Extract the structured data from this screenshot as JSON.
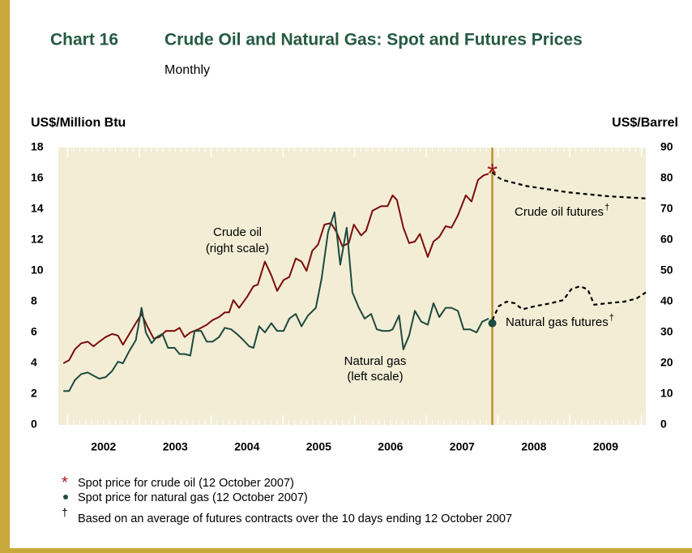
{
  "chart_data": {
    "type": "line",
    "chart_number": "Chart 16",
    "title": "Crude Oil and Natural Gas: Spot and Futures Prices",
    "subtitle": "Monthly",
    "ylabel": "US$/Million Btu",
    "y2label": "US$/Barrel",
    "categories": [
      "2002",
      "2003",
      "2004",
      "2005",
      "2006",
      "2007",
      "2008",
      "2009"
    ],
    "xlim": [
      2001.87,
      2010.06
    ],
    "xticks": [
      2002,
      2003,
      2004,
      2005,
      2006,
      2007,
      2008,
      2009,
      2010
    ],
    "ylim": [
      0,
      18
    ],
    "yticks": [
      0,
      2,
      4,
      6,
      8,
      10,
      12,
      14,
      16,
      18
    ],
    "y2lim": [
      0,
      90
    ],
    "y2ticks": [
      0,
      10,
      20,
      30,
      40,
      50,
      60,
      70,
      80,
      90
    ],
    "series": [
      {
        "name": "Crude oil",
        "color": "#7a0c0c",
        "axis": "y2",
        "dashed": false,
        "x": [
          2001.94,
          2002.02,
          2002.1,
          2002.19,
          2002.28,
          2002.36,
          2002.44,
          2002.53,
          2002.62,
          2002.7,
          2002.77,
          2002.86,
          2002.95,
          2003.03,
          2003.11,
          2003.2,
          2003.28,
          2003.37,
          2003.49,
          2003.56,
          2003.63,
          2003.71,
          2003.82,
          2003.94,
          2004.02,
          2004.11,
          2004.19,
          2004.25,
          2004.31,
          2004.39,
          2004.5,
          2004.59,
          2004.65,
          2004.75,
          2004.84,
          2004.92,
          2005.01,
          2005.09,
          2005.18,
          2005.26,
          2005.33,
          2005.41,
          2005.49,
          2005.58,
          2005.67,
          2005.75,
          2005.83,
          2005.92,
          2005.99,
          2006.09,
          2006.16,
          2006.25,
          2006.37,
          2006.46,
          2006.53,
          2006.59,
          2006.68,
          2006.76,
          2006.84,
          2006.91,
          2007.02,
          2007.1,
          2007.18,
          2007.27,
          2007.35,
          2007.44,
          2007.55,
          2007.63,
          2007.72,
          2007.8,
          2007.87
        ],
        "values": [
          20,
          21,
          24.5,
          26.5,
          27,
          25.5,
          27,
          28.5,
          29.5,
          29,
          26,
          29.5,
          33,
          36,
          32,
          28,
          28.5,
          30.5,
          30.5,
          31.5,
          28.5,
          30,
          31,
          32.5,
          34,
          35,
          36.5,
          36.5,
          40.5,
          38,
          41.5,
          45,
          45.5,
          53,
          48.5,
          43.5,
          47,
          48,
          54,
          53,
          50,
          56.5,
          58.5,
          65,
          65.5,
          62.5,
          58,
          59,
          65,
          61.5,
          63,
          69.5,
          71,
          71,
          74.5,
          73,
          64,
          59,
          59.5,
          62,
          54.5,
          59.5,
          61,
          64.5,
          64,
          68,
          74.5,
          72.5,
          79.5,
          81,
          81.5
        ]
      },
      {
        "name": "Natural gas",
        "color": "#1d4a3e",
        "axis": "y",
        "dashed": false,
        "x": [
          2001.94,
          2002.02,
          2002.1,
          2002.19,
          2002.28,
          2002.36,
          2002.44,
          2002.53,
          2002.62,
          2002.7,
          2002.77,
          2002.86,
          2002.95,
          2003.03,
          2003.09,
          2003.17,
          2003.24,
          2003.32,
          2003.4,
          2003.49,
          2003.56,
          2003.63,
          2003.71,
          2003.77,
          2003.86,
          2003.94,
          2004.02,
          2004.11,
          2004.19,
          2004.28,
          2004.36,
          2004.45,
          2004.53,
          2004.59,
          2004.67,
          2004.75,
          2004.84,
          2004.92,
          2005.01,
          2005.09,
          2005.18,
          2005.26,
          2005.35,
          2005.46,
          2005.54,
          2005.63,
          2005.72,
          2005.8,
          2005.89,
          2005.97,
          2006.06,
          2006.14,
          2006.23,
          2006.31,
          2006.39,
          2006.48,
          2006.53,
          2006.62,
          2006.68,
          2006.76,
          2006.84,
          2006.93,
          2007.02,
          2007.1,
          2007.18,
          2007.27,
          2007.35,
          2007.44,
          2007.52,
          2007.61,
          2007.7,
          2007.78,
          2007.87
        ],
        "values": [
          2.2,
          2.2,
          2.9,
          3.3,
          3.4,
          3.2,
          3.0,
          3.1,
          3.5,
          4.1,
          4.0,
          4.8,
          5.5,
          7.6,
          6.0,
          5.3,
          5.7,
          5.9,
          5.0,
          5.0,
          4.6,
          4.6,
          4.5,
          6.1,
          6.1,
          5.4,
          5.4,
          5.7,
          6.3,
          6.2,
          5.9,
          5.5,
          5.1,
          5.0,
          6.4,
          6.0,
          6.6,
          6.1,
          6.1,
          6.9,
          7.2,
          6.4,
          7.1,
          7.6,
          9.5,
          12.5,
          13.8,
          10.4,
          12.8,
          8.6,
          7.6,
          6.9,
          7.2,
          6.2,
          6.1,
          6.1,
          6.2,
          7.1,
          4.9,
          5.8,
          7.4,
          6.7,
          6.5,
          7.9,
          7.0,
          7.6,
          7.6,
          7.4,
          6.2,
          6.2,
          6.0,
          6.7,
          6.9
        ]
      },
      {
        "name": "Crude oil futures",
        "color": "#000000",
        "axis": "y2",
        "dashed": true,
        "x": [
          2007.92,
          2007.99,
          2008.06,
          2008.4,
          2008.97,
          2009.53,
          2010.06
        ],
        "values": [
          82,
          80.5,
          79.5,
          77.5,
          75.5,
          74.2,
          73.5
        ]
      },
      {
        "name": "Natural gas futures",
        "color": "#000000",
        "axis": "y",
        "dashed": true,
        "x": [
          2007.92,
          2008.01,
          2008.12,
          2008.23,
          2008.34,
          2008.51,
          2008.74,
          2008.91,
          2009.02,
          2009.14,
          2009.25,
          2009.34,
          2009.53,
          2009.76,
          2009.93,
          2010.06
        ],
        "values": [
          6.8,
          7.7,
          8.0,
          7.9,
          7.5,
          7.7,
          7.9,
          8.1,
          8.8,
          9.0,
          8.8,
          7.8,
          7.9,
          8.0,
          8.2,
          8.6
        ]
      }
    ],
    "spot_points": [
      {
        "x": 2007.92,
        "value": 83,
        "axis": "y2",
        "color": "#a01818"
      },
      {
        "x": 2007.92,
        "value": 6.6,
        "axis": "y",
        "color": "#1d4a3e"
      }
    ],
    "annotations": [
      "(right scale)",
      "(left scale)"
    ],
    "footnotes": [
      {
        "marker": "*",
        "text": "Spot price for crude oil (12 October 2007)"
      },
      {
        "text": "Spot price for natural gas (12 October 2007)"
      },
      {
        "marker": "†",
        "text": "Based on an average of futures contracts over the 10 days ending 12 October 2007"
      }
    ]
  }
}
